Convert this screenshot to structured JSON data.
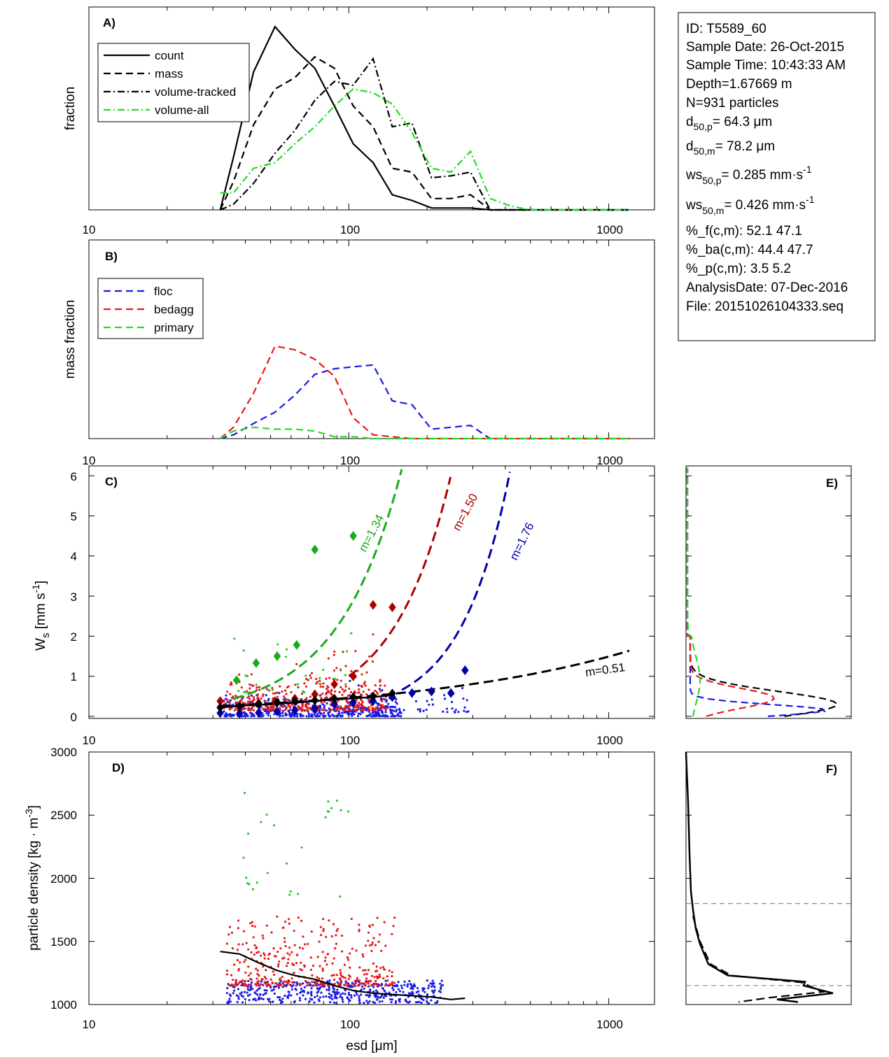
{
  "info": {
    "id": "ID: T5589_60",
    "sample_date": "Sample Date: 26-Oct-2015",
    "sample_time": "Sample Time: 10:43:33 AM",
    "depth": "Depth=1.67669 m",
    "n": "N=931 particles",
    "d50p_base": "d",
    "d50p_sub": "50,p",
    "d50p_val": "=  64.3 μm",
    "d50m_base": "d",
    "d50m_sub": "50,m",
    "d50m_val": "=  78.2 μm",
    "ws50p_base": "ws",
    "ws50p_sub": "50,p",
    "ws50p_val": "= 0.285 mm·s",
    "ws50p_sup": "-1",
    "ws50m_base": "ws",
    "ws50m_sub": "50,m",
    "ws50m_val": "= 0.426 mm·s",
    "ws50m_sup": "-1",
    "pf": "%_f(c,m): 52.1 47.1",
    "pba": "%_ba(c,m): 44.4 47.7",
    "pp": "%_p(c,m): 3.5 5.2",
    "analysis": "AnalysisDate: 07-Dec-2016",
    "file": "File: 20151026104333.seq"
  },
  "colors": {
    "black": "#000000",
    "green_line": "#22dd22",
    "blue": "#1a1ae6",
    "red": "#e61a1a",
    "green": "#22cc22",
    "dark_green": "#1aaa1a",
    "dark_red": "#aa0000",
    "dark_blue": "#0000aa",
    "grey": "#888888"
  },
  "chart_data": [
    {
      "panel": "A",
      "panel_label": "A)",
      "type": "line",
      "x_scale": "log",
      "xlim": [
        10,
        1500
      ],
      "ylim": [
        0,
        1.0
      ],
      "ylabel": "fraction",
      "xticks": [
        "10",
        "100",
        "1000"
      ],
      "legend": "top-left",
      "series": [
        {
          "name": "count",
          "style": "solid",
          "x": [
            32,
            36,
            43,
            52,
            62,
            74,
            88,
            104,
            124,
            147,
            175,
            208,
            247,
            294,
            350,
            1200
          ],
          "y": [
            0,
            0.28,
            0.73,
            0.97,
            0.85,
            0.75,
            0.55,
            0.35,
            0.25,
            0.08,
            0.05,
            0.01,
            0.01,
            0.01,
            0,
            0
          ]
        },
        {
          "name": "mass",
          "style": "dashed",
          "x": [
            32,
            36,
            43,
            52,
            62,
            74,
            88,
            104,
            124,
            147,
            175,
            208,
            247,
            294,
            350,
            1200
          ],
          "y": [
            0,
            0.15,
            0.45,
            0.64,
            0.7,
            0.81,
            0.75,
            0.55,
            0.44,
            0.22,
            0.2,
            0.06,
            0.06,
            0.08,
            0,
            0
          ]
        },
        {
          "name": "volume-tracked",
          "style": "dashdot",
          "x": [
            32,
            36,
            43,
            52,
            62,
            74,
            88,
            104,
            124,
            147,
            175,
            208,
            247,
            294,
            350,
            1200
          ],
          "y": [
            0,
            0.03,
            0.14,
            0.3,
            0.42,
            0.58,
            0.68,
            0.66,
            0.8,
            0.44,
            0.46,
            0.17,
            0.18,
            0.2,
            0,
            0
          ]
        },
        {
          "name": "volume-all",
          "style": "dashdot",
          "x": [
            32,
            36,
            43,
            52,
            62,
            74,
            88,
            104,
            124,
            147,
            175,
            208,
            247,
            294,
            350,
            420,
            500,
            1200
          ],
          "y": [
            0.09,
            0.09,
            0.22,
            0.25,
            0.35,
            0.44,
            0.55,
            0.64,
            0.62,
            0.56,
            0.41,
            0.22,
            0.2,
            0.31,
            0.06,
            0.02,
            0,
            0
          ]
        }
      ]
    },
    {
      "panel": "B",
      "panel_label": "B)",
      "type": "line",
      "x_scale": "log",
      "xlim": [
        10,
        1500
      ],
      "ylim": [
        0,
        1.0
      ],
      "ylabel": "mass fraction",
      "xticks": [
        "10",
        "100",
        "1000"
      ],
      "legend": "top-left",
      "series": [
        {
          "name": "floc",
          "style": "dashed",
          "x": [
            32,
            36,
            43,
            52,
            62,
            74,
            88,
            104,
            124,
            147,
            175,
            208,
            247,
            294,
            350,
            1200
          ],
          "y": [
            0,
            0.02,
            0.08,
            0.14,
            0.23,
            0.34,
            0.37,
            0.38,
            0.39,
            0.2,
            0.18,
            0.05,
            0.06,
            0.07,
            0,
            0
          ]
        },
        {
          "name": "bedagg",
          "style": "dashed",
          "x": [
            32,
            36,
            43,
            52,
            62,
            74,
            88,
            104,
            124,
            147,
            175,
            208,
            247,
            294,
            350,
            1200
          ],
          "y": [
            0,
            0.06,
            0.24,
            0.49,
            0.47,
            0.42,
            0.33,
            0.11,
            0.02,
            0.01,
            0,
            0,
            0,
            0,
            0,
            0
          ]
        },
        {
          "name": "primary",
          "style": "dashed",
          "x": [
            32,
            36,
            43,
            52,
            62,
            74,
            88,
            104,
            124,
            147,
            175,
            208,
            247,
            294,
            350,
            1200
          ],
          "y": [
            0,
            0.04,
            0.06,
            0.05,
            0.05,
            0.04,
            0.01,
            0.01,
            0,
            0,
            0,
            0,
            0,
            0,
            0,
            0
          ]
        }
      ]
    },
    {
      "panel": "C",
      "panel_label": "C)",
      "type": "scatter",
      "x_scale": "log",
      "xlim": [
        10,
        1500
      ],
      "ylim": [
        0,
        6.3
      ],
      "ylabel_base": "W",
      "ylabel_sub": "s",
      "ylabel_unit": " [mm s",
      "ylabel_sup": "-1",
      "ylabel_end": "]",
      "xticks": [
        "10",
        "100",
        "1000"
      ],
      "yticks": [
        "0",
        "1",
        "2",
        "3",
        "4",
        "5",
        "6"
      ],
      "fits": [
        {
          "label": "m=1.34",
          "a": 0.00078,
          "m": 1.34
        },
        {
          "label": "m=1.50",
          "a": 0.00011,
          "m": 1.5
        },
        {
          "label": "m=1.76",
          "a": 5e-06,
          "m": 1.76
        },
        {
          "label": "m=0.51",
          "a": 0.044,
          "m": 0.51
        }
      ],
      "diamonds": {
        "green": [
          [
            37,
            0.9
          ],
          [
            44,
            1.33
          ],
          [
            53,
            1.5
          ],
          [
            63,
            1.78
          ],
          [
            74,
            4.16
          ],
          [
            104,
            4.5
          ]
        ],
        "dark_red": [
          [
            32,
            0.38
          ],
          [
            38,
            0.25
          ],
          [
            45,
            0.33
          ],
          [
            52,
            0.38
          ],
          [
            62,
            0.44
          ],
          [
            74,
            0.55
          ],
          [
            88,
            0.8
          ],
          [
            104,
            1.0
          ],
          [
            124,
            2.78
          ],
          [
            147,
            2.72
          ]
        ],
        "black": [
          [
            32,
            0.22
          ],
          [
            38,
            0.25
          ],
          [
            45,
            0.3
          ],
          [
            53,
            0.34
          ],
          [
            62,
            0.38
          ],
          [
            74,
            0.4
          ],
          [
            88,
            0.44
          ],
          [
            104,
            0.48
          ],
          [
            124,
            0.5
          ],
          [
            147,
            0.57
          ]
        ],
        "dark_blue": [
          [
            32,
            0.08
          ],
          [
            38,
            0.07
          ],
          [
            45,
            0.09
          ],
          [
            53,
            0.12
          ],
          [
            62,
            0.15
          ],
          [
            74,
            0.2
          ],
          [
            88,
            0.3
          ],
          [
            104,
            0.35
          ],
          [
            124,
            0.38
          ],
          [
            147,
            0.48
          ],
          [
            175,
            0.58
          ],
          [
            208,
            0.62
          ],
          [
            247,
            0.58
          ],
          [
            280,
            1.15
          ]
        ]
      },
      "mean_line": {
        "x": [
          32,
          40,
          50,
          62,
          74,
          88,
          104,
          124,
          147
        ],
        "y": [
          0.22,
          0.27,
          0.3,
          0.34,
          0.38,
          0.42,
          0.45,
          0.48,
          0.53
        ]
      }
    },
    {
      "panel": "D",
      "panel_label": "D)",
      "type": "scatter",
      "x_scale": "log",
      "xlim": [
        10,
        1500
      ],
      "ylim": [
        1000,
        3000
      ],
      "ylabel_base": "particle density [kg · m",
      "ylabel_sup": "-3",
      "ylabel_end": "]",
      "xlabel": "esd [μm]",
      "xticks": [
        "10",
        "100",
        "1000"
      ],
      "yticks": [
        "1000",
        "1500",
        "2000",
        "2500",
        "3000"
      ],
      "mean_line": {
        "x": [
          32,
          38,
          45,
          53,
          62,
          74,
          88,
          104,
          124,
          147,
          175,
          208,
          247,
          280
        ],
        "y": [
          1420,
          1400,
          1330,
          1270,
          1230,
          1200,
          1150,
          1110,
          1090,
          1080,
          1070,
          1060,
          1040,
          1050
        ]
      }
    },
    {
      "panel": "E",
      "panel_label": "E)",
      "type": "line",
      "ylim": [
        0,
        6.3
      ]
    },
    {
      "panel": "F",
      "panel_label": "F)",
      "type": "line",
      "ylim": [
        1000,
        3000
      ],
      "ref_lines": [
        1150,
        1800
      ]
    }
  ]
}
